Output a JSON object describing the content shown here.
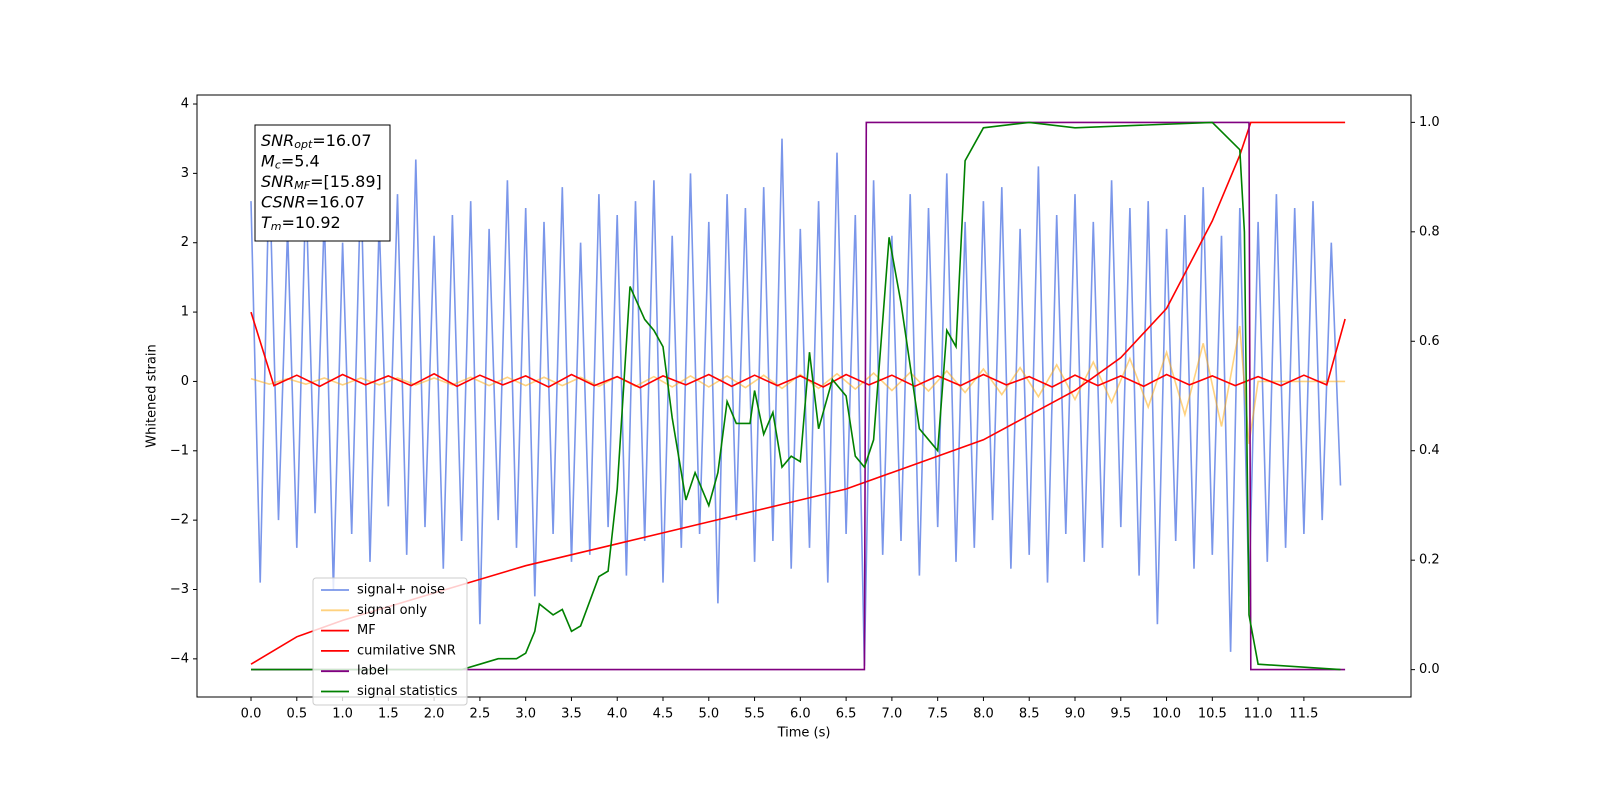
{
  "chart_data": {
    "type": "line",
    "xlabel": "Time (s)",
    "ylabel": "Whitened strain",
    "xlim": [
      -0.59,
      12.67
    ],
    "ylim": [
      -4.55,
      4.13
    ],
    "y2lim": [
      -0.05,
      1.05
    ],
    "xticks": [
      {
        "value": 0,
        "label": "0.0"
      },
      {
        "value": 0.5,
        "label": "0.5"
      },
      {
        "value": 1,
        "label": "1.0"
      },
      {
        "value": 1.5,
        "label": "1.5"
      },
      {
        "value": 2,
        "label": "2.0"
      },
      {
        "value": 2.5,
        "label": "2.5"
      },
      {
        "value": 3,
        "label": "3.0"
      },
      {
        "value": 3.5,
        "label": "3.5"
      },
      {
        "value": 4,
        "label": "4.0"
      },
      {
        "value": 4.5,
        "label": "4.5"
      },
      {
        "value": 5,
        "label": "5.0"
      },
      {
        "value": 5.5,
        "label": "5.5"
      },
      {
        "value": 6,
        "label": "6.0"
      },
      {
        "value": 6.5,
        "label": "6.5"
      },
      {
        "value": 7,
        "label": "7.0"
      },
      {
        "value": 7.5,
        "label": "7.5"
      },
      {
        "value": 8,
        "label": "8.0"
      },
      {
        "value": 8.5,
        "label": "8.5"
      },
      {
        "value": 9,
        "label": "9.0"
      },
      {
        "value": 9.5,
        "label": "9.5"
      },
      {
        "value": 10,
        "label": "10.0"
      },
      {
        "value": 10.5,
        "label": "10.5"
      },
      {
        "value": 11,
        "label": "11.0"
      },
      {
        "value": 11.5,
        "label": "11.5"
      }
    ],
    "yticks": [
      {
        "value": -4,
        "label": "−4"
      },
      {
        "value": -3,
        "label": "−3"
      },
      {
        "value": -2,
        "label": "−2"
      },
      {
        "value": -1,
        "label": "−1"
      },
      0,
      1,
      2,
      3,
      4
    ],
    "y2ticks": [
      {
        "value": 0,
        "label": "0.0"
      },
      {
        "value": 0.2,
        "label": "0.2"
      },
      {
        "value": 0.4,
        "label": "0.4"
      },
      {
        "value": 0.6,
        "label": "0.6"
      },
      {
        "value": 0.8,
        "label": "0.8"
      },
      {
        "value": 1,
        "label": "1.0"
      }
    ],
    "legend": "lower left",
    "annotation_lines": [
      {
        "name": "SNR",
        "sub": "opt",
        "text": "=16.07"
      },
      {
        "name": "M",
        "sub": "c",
        "text": "=5.4"
      },
      {
        "name": "SNR",
        "sub": "MF",
        "text": "=[15.89]"
      },
      {
        "name": "CSNR",
        "text": "=16.07"
      },
      {
        "name": "T",
        "sub": "m",
        "text": "=10.92"
      }
    ],
    "series": [
      {
        "name": "signal+ noise",
        "color": "#4169e1",
        "opacity": 0.7,
        "axis": "y",
        "x": [
          0,
          0.1,
          0.2,
          0.3,
          0.4,
          0.5,
          0.6,
          0.7,
          0.8,
          0.9,
          1,
          1.1,
          1.2,
          1.3,
          1.4,
          1.5,
          1.6,
          1.7,
          1.8,
          1.9,
          2,
          2.1,
          2.2,
          2.3,
          2.4,
          2.5,
          2.6,
          2.7,
          2.8,
          2.9,
          3,
          3.1,
          3.2,
          3.3,
          3.4,
          3.5,
          3.6,
          3.7,
          3.8,
          3.9,
          4,
          4.1,
          4.2,
          4.3,
          4.4,
          4.5,
          4.6,
          4.7,
          4.8,
          4.9,
          5,
          5.1,
          5.2,
          5.3,
          5.4,
          5.5,
          5.6,
          5.7,
          5.8,
          5.9,
          6,
          6.1,
          6.2,
          6.3,
          6.4,
          6.5,
          6.6,
          6.7,
          6.8,
          6.9,
          7,
          7.1,
          7.2,
          7.3,
          7.4,
          7.5,
          7.6,
          7.7,
          7.8,
          7.9,
          8,
          8.1,
          8.2,
          8.3,
          8.4,
          8.5,
          8.6,
          8.7,
          8.8,
          8.9,
          9,
          9.1,
          9.2,
          9.3,
          9.4,
          9.5,
          9.6,
          9.7,
          9.8,
          9.9,
          10,
          10.1,
          10.2,
          10.3,
          10.4,
          10.5,
          10.6,
          10.7,
          10.8,
          10.9,
          11,
          11.1,
          11.2,
          11.3,
          11.4,
          11.5,
          11.6,
          11.7,
          11.8,
          11.9
        ],
        "values": [
          2.6,
          -2.9,
          3.1,
          -2.0,
          2.2,
          -2.4,
          2.8,
          -1.9,
          2.4,
          -3.0,
          2.0,
          -2.2,
          2.9,
          -2.6,
          2.3,
          -1.8,
          2.7,
          -2.5,
          3.2,
          -2.1,
          2.1,
          -2.7,
          2.4,
          -2.3,
          2.6,
          -3.5,
          2.2,
          -2.0,
          2.9,
          -2.4,
          2.5,
          -3.1,
          2.3,
          -2.2,
          2.8,
          -2.6,
          2.0,
          -2.5,
          2.7,
          -2.1,
          2.4,
          -2.8,
          2.6,
          -2.3,
          2.9,
          -2.9,
          2.1,
          -2.4,
          3.0,
          -2.2,
          2.3,
          -3.2,
          2.7,
          -2.0,
          2.5,
          -2.6,
          2.8,
          -2.3,
          3.5,
          -2.7,
          2.2,
          -2.4,
          2.6,
          -2.9,
          3.3,
          -2.2,
          2.4,
          -4.1,
          2.9,
          -2.5,
          2.1,
          -2.3,
          2.7,
          -2.8,
          2.5,
          -2.1,
          3.0,
          -2.6,
          2.3,
          -2.4,
          2.6,
          -2.0,
          2.8,
          -2.7,
          2.2,
          -2.5,
          3.1,
          -2.9,
          2.4,
          -2.2,
          2.7,
          -2.6,
          2.3,
          -2.4,
          2.9,
          -2.1,
          2.5,
          -2.8,
          2.6,
          -3.5,
          2.2,
          -2.3,
          2.4,
          -2.7,
          2.8,
          -2.5,
          2.1,
          -3.9,
          2.5,
          -3.1,
          2.3,
          -2.6,
          2.7,
          -2.4,
          2.5,
          -2.2,
          2.6,
          -2.0,
          2.0,
          -1.5
        ]
      },
      {
        "name": "signal only",
        "color": "#ffa500",
        "opacity": 0.5,
        "axis": "y",
        "x": [
          0,
          0.2,
          0.4,
          0.6,
          0.8,
          1,
          1.2,
          1.4,
          1.6,
          1.8,
          2,
          2.2,
          2.4,
          2.6,
          2.8,
          3,
          3.2,
          3.4,
          3.6,
          3.8,
          4,
          4.2,
          4.4,
          4.6,
          4.8,
          5,
          5.2,
          5.4,
          5.6,
          5.8,
          6,
          6.2,
          6.4,
          6.6,
          6.8,
          7,
          7.2,
          7.4,
          7.6,
          7.8,
          8,
          8.2,
          8.4,
          8.6,
          8.8,
          9,
          9.2,
          9.4,
          9.6,
          9.8,
          10,
          10.2,
          10.4,
          10.6,
          10.8,
          10.9,
          11,
          11.95
        ],
        "values": [
          0.04,
          -0.04,
          0.04,
          -0.04,
          0.05,
          -0.05,
          0.05,
          -0.05,
          0.05,
          -0.05,
          0.05,
          -0.05,
          0.06,
          -0.06,
          0.06,
          -0.06,
          0.06,
          -0.06,
          0.06,
          -0.07,
          0.07,
          -0.07,
          0.07,
          -0.08,
          0.08,
          -0.08,
          0.08,
          -0.09,
          0.09,
          -0.1,
          0.1,
          -0.1,
          0.11,
          -0.11,
          0.12,
          -0.13,
          0.13,
          -0.14,
          0.15,
          -0.16,
          0.18,
          -0.19,
          0.2,
          -0.22,
          0.24,
          -0.26,
          0.28,
          -0.3,
          0.33,
          -0.37,
          0.42,
          -0.48,
          0.55,
          -0.65,
          0.8,
          -0.9,
          0,
          0
        ]
      },
      {
        "name": "MF",
        "color": "#ff0000",
        "opacity": 1,
        "axis": "y",
        "x": [
          0,
          0.25,
          0.5,
          0.75,
          1,
          1.25,
          1.5,
          1.75,
          2,
          2.25,
          2.5,
          2.75,
          3,
          3.25,
          3.5,
          3.75,
          4,
          4.25,
          4.5,
          4.75,
          5,
          5.25,
          5.5,
          5.75,
          6,
          6.25,
          6.5,
          6.75,
          7,
          7.25,
          7.5,
          7.75,
          8,
          8.25,
          8.5,
          8.75,
          9,
          9.25,
          9.5,
          9.75,
          10,
          10.25,
          10.5,
          10.75,
          11,
          11.25,
          11.5,
          11.75,
          11.95
        ],
        "values": [
          1.0,
          -0.06,
          0.09,
          -0.07,
          0.1,
          -0.05,
          0.08,
          -0.06,
          0.11,
          -0.07,
          0.09,
          -0.05,
          0.08,
          -0.08,
          0.1,
          -0.06,
          0.07,
          -0.09,
          0.08,
          -0.05,
          0.1,
          -0.07,
          0.09,
          -0.06,
          0.08,
          -0.08,
          0.1,
          -0.05,
          0.09,
          -0.07,
          0.08,
          -0.06,
          0.1,
          -0.05,
          0.07,
          -0.08,
          0.09,
          -0.06,
          0.08,
          -0.07,
          0.1,
          -0.05,
          0.08,
          -0.06,
          0.07,
          -0.06,
          0.09,
          -0.05,
          0.9
        ]
      },
      {
        "name": "cumilative SNR",
        "color": "#ff0000",
        "opacity": 1,
        "axis": "y2",
        "x": [
          0,
          0.1,
          0.5,
          1,
          2,
          3,
          4,
          5,
          6,
          6.5,
          7,
          8,
          9,
          9.5,
          10,
          10.5,
          10.8,
          10.92,
          11.95
        ],
        "values": [
          0.01,
          0.02,
          0.06,
          0.09,
          0.14,
          0.19,
          0.23,
          0.27,
          0.31,
          0.33,
          0.36,
          0.42,
          0.51,
          0.57,
          0.66,
          0.82,
          0.94,
          1.0,
          1.0
        ]
      },
      {
        "name": "label",
        "color": "#800080",
        "opacity": 1,
        "axis": "y2",
        "x": [
          0,
          6.7,
          6.72,
          10.9,
          10.92,
          11.95
        ],
        "values": [
          0,
          0,
          1,
          1,
          0,
          0
        ]
      },
      {
        "name": "signal statistics",
        "color": "#008000",
        "opacity": 1,
        "axis": "y2",
        "x": [
          0,
          2.3,
          2.5,
          2.7,
          2.9,
          3.0,
          3.1,
          3.15,
          3.3,
          3.4,
          3.5,
          3.6,
          3.8,
          3.9,
          4.0,
          4.14,
          4.3,
          4.4,
          4.5,
          4.6,
          4.75,
          4.85,
          5.0,
          5.1,
          5.2,
          5.3,
          5.45,
          5.5,
          5.6,
          5.7,
          5.8,
          5.9,
          6.0,
          6.1,
          6.2,
          6.35,
          6.5,
          6.6,
          6.7,
          6.8,
          6.97,
          7.1,
          7.3,
          7.5,
          7.6,
          7.7,
          7.8,
          8.0,
          8.5,
          9.0,
          10.5,
          10.8,
          10.85,
          10.9,
          11.0,
          11.9
        ],
        "values": [
          0,
          0,
          0.01,
          0.02,
          0.02,
          0.03,
          0.07,
          0.12,
          0.1,
          0.11,
          0.07,
          0.08,
          0.17,
          0.18,
          0.33,
          0.7,
          0.64,
          0.62,
          0.59,
          0.46,
          0.31,
          0.36,
          0.3,
          0.36,
          0.49,
          0.45,
          0.45,
          0.51,
          0.43,
          0.47,
          0.37,
          0.39,
          0.38,
          0.58,
          0.44,
          0.53,
          0.5,
          0.39,
          0.37,
          0.42,
          0.79,
          0.67,
          0.44,
          0.4,
          0.62,
          0.59,
          0.93,
          0.99,
          1.0,
          0.99,
          1.0,
          0.95,
          0.8,
          0.1,
          0.01,
          0
        ]
      }
    ]
  }
}
